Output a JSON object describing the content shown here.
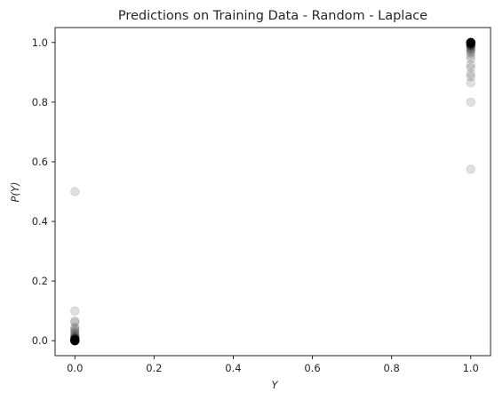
{
  "chart_data": {
    "type": "scatter",
    "title": "Predictions on Training Data - Random - Laplace",
    "xlabel": "Y",
    "ylabel": "P(Y)",
    "xlim": [
      -0.05,
      1.05
    ],
    "ylim": [
      -0.05,
      1.05
    ],
    "xticks": [
      0.0,
      0.2,
      0.4,
      0.6,
      0.8,
      1.0
    ],
    "yticks": [
      0.0,
      0.2,
      0.4,
      0.6,
      0.8,
      1.0
    ],
    "xtick_labels": [
      "0.0",
      "0.2",
      "0.4",
      "0.6",
      "0.8",
      "1.0"
    ],
    "ytick_labels": [
      "0.0",
      "0.2",
      "0.4",
      "0.6",
      "0.8",
      "1.0"
    ],
    "marker_color": "#000000",
    "marker_alpha": 0.12,
    "grid": false,
    "points": [
      {
        "x": 0,
        "y": 0.5
      },
      {
        "x": 0,
        "y": 0.1
      },
      {
        "x": 0,
        "y": 0.066
      },
      {
        "x": 0,
        "y": 0.062
      },
      {
        "x": 0,
        "y": 0.045
      },
      {
        "x": 0,
        "y": 0.04
      },
      {
        "x": 0,
        "y": 0.035
      },
      {
        "x": 0,
        "y": 0.03
      },
      {
        "x": 0,
        "y": 0.025
      },
      {
        "x": 0,
        "y": 0.02
      },
      {
        "x": 0,
        "y": 0.016
      },
      {
        "x": 0,
        "y": 0.013
      },
      {
        "x": 0,
        "y": 0.011
      },
      {
        "x": 0,
        "y": 0.009
      },
      {
        "x": 0,
        "y": 0.008
      },
      {
        "x": 0,
        "y": 0.007
      },
      {
        "x": 0,
        "y": 0.006
      },
      {
        "x": 0,
        "y": 0.005
      },
      {
        "x": 0,
        "y": 0.005
      },
      {
        "x": 0,
        "y": 0.004
      },
      {
        "x": 0,
        "y": 0.004
      },
      {
        "x": 0,
        "y": 0.003
      },
      {
        "x": 0,
        "y": 0.003
      },
      {
        "x": 0,
        "y": 0.003
      },
      {
        "x": 0,
        "y": 0.002
      },
      {
        "x": 0,
        "y": 0.002
      },
      {
        "x": 0,
        "y": 0.002
      },
      {
        "x": 0,
        "y": 0.002
      },
      {
        "x": 0,
        "y": 0.001
      },
      {
        "x": 0,
        "y": 0.001
      },
      {
        "x": 0,
        "y": 0.001
      },
      {
        "x": 0,
        "y": 0.001
      },
      {
        "x": 0,
        "y": 0.001
      },
      {
        "x": 0,
        "y": 0.001
      },
      {
        "x": 0,
        "y": 0.0
      },
      {
        "x": 0,
        "y": 0.0
      },
      {
        "x": 0,
        "y": 0.0
      },
      {
        "x": 0,
        "y": 0.0
      },
      {
        "x": 0,
        "y": 0.0
      },
      {
        "x": 0,
        "y": 0.0
      },
      {
        "x": 0,
        "y": 0.0
      },
      {
        "x": 0,
        "y": 0.0
      },
      {
        "x": 0,
        "y": 0.0
      },
      {
        "x": 0,
        "y": 0.0
      },
      {
        "x": 0,
        "y": 0.0
      },
      {
        "x": 0,
        "y": 0.0
      },
      {
        "x": 0,
        "y": 0.0
      },
      {
        "x": 0,
        "y": 0.0
      },
      {
        "x": 1,
        "y": 0.575
      },
      {
        "x": 1,
        "y": 0.8
      },
      {
        "x": 1,
        "y": 0.865
      },
      {
        "x": 1,
        "y": 0.885
      },
      {
        "x": 1,
        "y": 0.895
      },
      {
        "x": 1,
        "y": 0.915
      },
      {
        "x": 1,
        "y": 0.925
      },
      {
        "x": 1,
        "y": 0.945
      },
      {
        "x": 1,
        "y": 0.955
      },
      {
        "x": 1,
        "y": 0.965
      },
      {
        "x": 1,
        "y": 0.97
      },
      {
        "x": 1,
        "y": 0.975
      },
      {
        "x": 1,
        "y": 0.978
      },
      {
        "x": 1,
        "y": 0.982
      },
      {
        "x": 1,
        "y": 0.985
      },
      {
        "x": 1,
        "y": 0.988
      },
      {
        "x": 1,
        "y": 0.99
      },
      {
        "x": 1,
        "y": 0.991
      },
      {
        "x": 1,
        "y": 0.993
      },
      {
        "x": 1,
        "y": 0.994
      },
      {
        "x": 1,
        "y": 0.995
      },
      {
        "x": 1,
        "y": 0.996
      },
      {
        "x": 1,
        "y": 0.996
      },
      {
        "x": 1,
        "y": 0.997
      },
      {
        "x": 1,
        "y": 0.997
      },
      {
        "x": 1,
        "y": 0.998
      },
      {
        "x": 1,
        "y": 0.998
      },
      {
        "x": 1,
        "y": 0.998
      },
      {
        "x": 1,
        "y": 0.999
      },
      {
        "x": 1,
        "y": 0.999
      },
      {
        "x": 1,
        "y": 0.999
      },
      {
        "x": 1,
        "y": 0.999
      },
      {
        "x": 1,
        "y": 1.0
      },
      {
        "x": 1,
        "y": 1.0
      },
      {
        "x": 1,
        "y": 1.0
      },
      {
        "x": 1,
        "y": 1.0
      },
      {
        "x": 1,
        "y": 1.0
      },
      {
        "x": 1,
        "y": 1.0
      },
      {
        "x": 1,
        "y": 1.0
      },
      {
        "x": 1,
        "y": 1.0
      },
      {
        "x": 1,
        "y": 1.0
      },
      {
        "x": 1,
        "y": 1.0
      },
      {
        "x": 1,
        "y": 1.0
      },
      {
        "x": 1,
        "y": 1.0
      },
      {
        "x": 1,
        "y": 1.0
      },
      {
        "x": 1,
        "y": 1.0
      },
      {
        "x": 1,
        "y": 1.0
      },
      {
        "x": 1,
        "y": 1.0
      }
    ]
  }
}
